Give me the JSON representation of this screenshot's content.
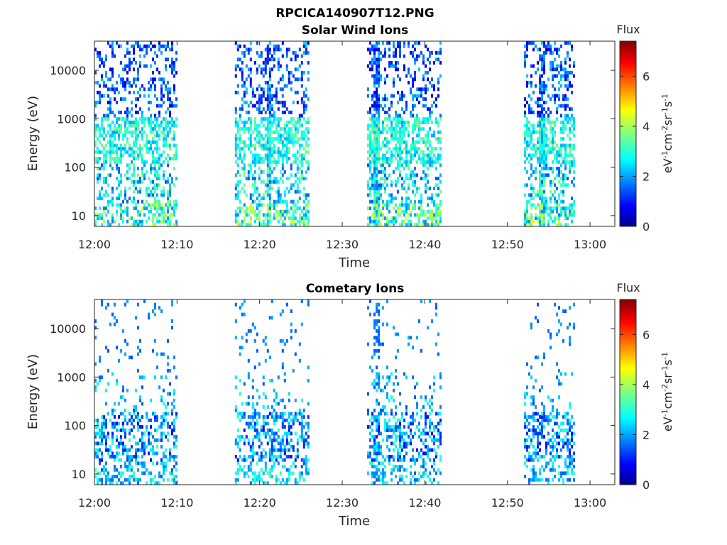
{
  "figure": {
    "title": "RPCICA140907T12.PNG"
  },
  "chart_data": [
    {
      "type": "heatmap",
      "title": "Solar Wind Ions",
      "xlabel": "Time",
      "ylabel": "Energy (eV)",
      "y_scale": "log",
      "xlim": [
        "12:00",
        "13:03"
      ],
      "ylim": [
        6,
        40000
      ],
      "x_ticks": [
        "12:00",
        "12:10",
        "12:20",
        "12:30",
        "12:40",
        "12:50",
        "13:00"
      ],
      "y_ticks": [
        "10",
        "100",
        "1000",
        "10000"
      ],
      "grid": false,
      "colorbar": {
        "title": "Flux",
        "label": "eV-1cm-2sr-1s-1",
        "range": [
          0,
          7.4
        ],
        "ticks": [
          "0",
          "2",
          "4",
          "6"
        ],
        "colormap": "jet"
      },
      "active_intervals": [
        {
          "start": "12:00",
          "end": "12:10"
        },
        {
          "start": "12:17",
          "end": "12:26"
        },
        {
          "start": "12:33",
          "end": "12:42"
        },
        {
          "start": "12:52",
          "end": "12:58"
        }
      ],
      "spike_times": [
        "12:21",
        "12:34",
        "12:54"
      ]
    },
    {
      "type": "heatmap",
      "title": "Cometary Ions",
      "xlabel": "Time",
      "ylabel": "Energy (eV)",
      "y_scale": "log",
      "xlim": [
        "12:00",
        "13:03"
      ],
      "ylim": [
        6,
        40000
      ],
      "x_ticks": [
        "12:00",
        "12:10",
        "12:20",
        "12:30",
        "12:40",
        "12:50",
        "13:00"
      ],
      "y_ticks": [
        "10",
        "100",
        "1000",
        "10000"
      ],
      "grid": false,
      "colorbar": {
        "title": "Flux",
        "label": "eV-1cm-2sr-1s-1",
        "range": [
          0,
          7.4
        ],
        "ticks": [
          "0",
          "2",
          "4",
          "6"
        ],
        "colormap": "jet"
      },
      "active_intervals": [
        {
          "start": "12:00",
          "end": "12:10"
        },
        {
          "start": "12:17",
          "end": "12:26"
        },
        {
          "start": "12:33",
          "end": "12:42"
        },
        {
          "start": "12:52",
          "end": "12:58"
        }
      ],
      "spike_times": [
        "12:34"
      ]
    }
  ]
}
